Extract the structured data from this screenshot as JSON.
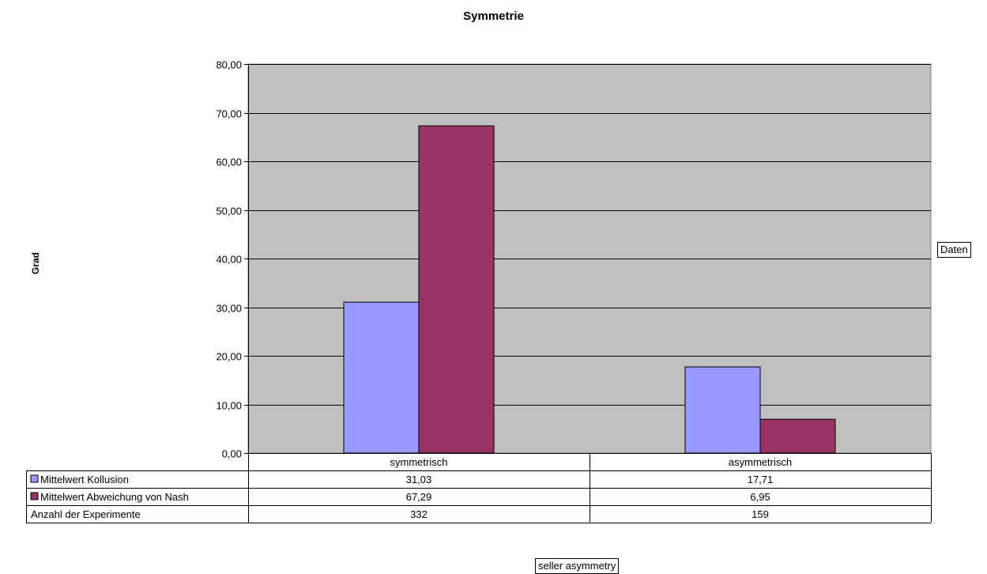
{
  "chart_data": {
    "type": "bar",
    "title": "Symmetrie",
    "xlabel": "seller asymmetry",
    "ylabel": "Grad",
    "legend_button": "Daten",
    "categories": [
      "symmetrisch",
      "asymmetrisch"
    ],
    "series": [
      {
        "name": "Mittelwert Kollusion",
        "values": [
          31.03,
          17.71
        ],
        "labels": [
          "31,03",
          "17,71"
        ],
        "color": "#9999ff"
      },
      {
        "name": "Mittelwert Abweichung von Nash",
        "values": [
          67.29,
          6.95
        ],
        "labels": [
          "67,29",
          "6,95"
        ],
        "color": "#993366"
      }
    ],
    "extra_rows": [
      {
        "name": "Anzahl der Experimente",
        "labels": [
          "332",
          "159"
        ]
      }
    ],
    "ylim": [
      0,
      80
    ],
    "yticks": [
      0,
      10,
      20,
      30,
      40,
      50,
      60,
      70,
      80
    ],
    "ytick_labels": [
      "0,00",
      "10,00",
      "20,00",
      "30,00",
      "40,00",
      "50,00",
      "60,00",
      "70,00",
      "80,00"
    ],
    "plot_background": "#c0c0c0",
    "grid": true,
    "legend": "data-table"
  }
}
